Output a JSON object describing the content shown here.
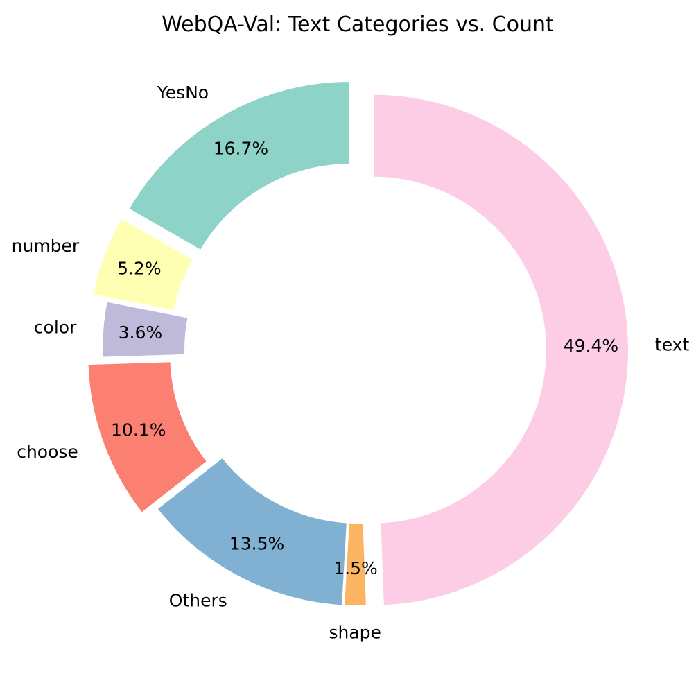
{
  "chart_data": {
    "type": "pie",
    "subtype": "donut",
    "title": "WebQA-Val: Text Categories vs. Count",
    "slices": [
      {
        "label": "YesNo",
        "percent_label": "16.7%",
        "value": 16.7,
        "color": "#8dd3c7",
        "exploded": true
      },
      {
        "label": "number",
        "percent_label": "5.2%",
        "value": 5.2,
        "color": "#ffffb3",
        "exploded": true
      },
      {
        "label": "color",
        "percent_label": "3.6%",
        "value": 3.6,
        "color": "#bebada",
        "exploded": false
      },
      {
        "label": "choose",
        "percent_label": "10.1%",
        "value": 10.1,
        "color": "#fb8072",
        "exploded": true
      },
      {
        "label": "Others",
        "percent_label": "13.5%",
        "value": 13.5,
        "color": "#80b1d3",
        "exploded": false
      },
      {
        "label": "shape",
        "percent_label": "1.5%",
        "value": 1.5,
        "color": "#fdb462",
        "exploded": false
      },
      {
        "label": "text",
        "percent_label": "49.4%",
        "value": 49.4,
        "color": "#fccde5",
        "exploded": true
      }
    ],
    "start_angle_deg": 90,
    "direction": "counterclockwise",
    "legend": "none"
  }
}
